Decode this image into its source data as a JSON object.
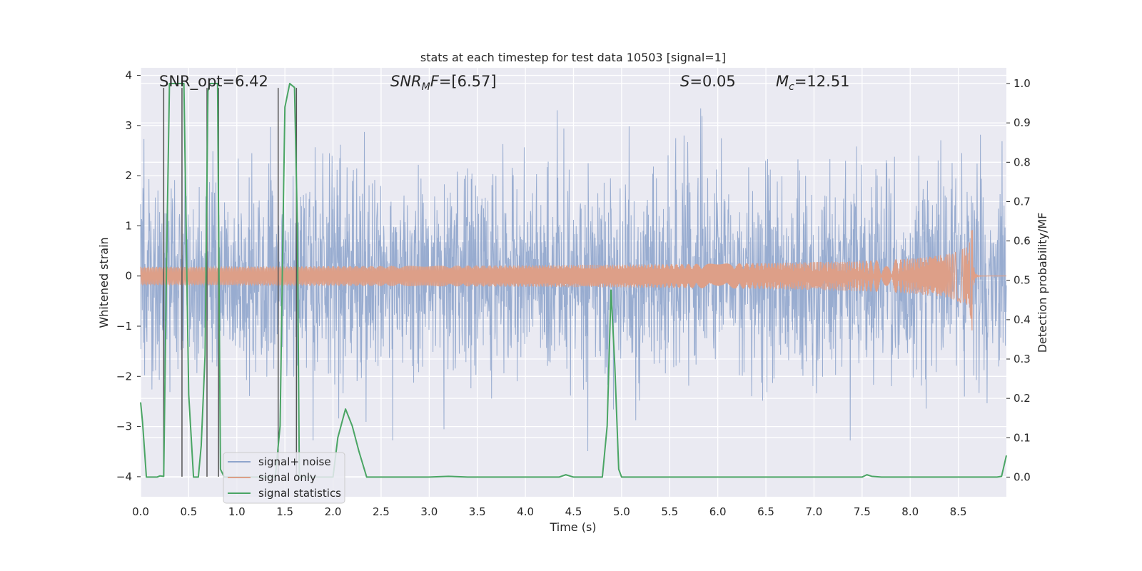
{
  "chart_data": {
    "type": "line",
    "title": "stats at each timestep for test data 10503 [signal=1]",
    "xlabel": "Time (s)",
    "ylabel_left": "Whitened strain",
    "ylabel_right": "Detection probability/MF",
    "xlim": [
      0.0,
      9.0
    ],
    "ylim_left": [
      -4.4,
      4.15
    ],
    "ylim_right": [
      -0.05,
      1.04
    ],
    "x_ticks": [
      "0.0",
      "0.5",
      "1.0",
      "1.5",
      "2.0",
      "2.5",
      "3.0",
      "3.5",
      "4.0",
      "4.5",
      "5.0",
      "5.5",
      "6.0",
      "6.5",
      "7.0",
      "7.5",
      "8.0",
      "8.5"
    ],
    "y_ticks_left": [
      "4",
      "3",
      "2",
      "1",
      "0",
      "−1",
      "−2",
      "−3",
      "−4"
    ],
    "y_ticks_right": [
      "1.0",
      "0.9",
      "0.8",
      "0.7",
      "0.6",
      "0.5",
      "0.4",
      "0.3",
      "0.2",
      "0.1",
      "0.0"
    ],
    "grid": true,
    "legend_position": "lower-left",
    "annotations": {
      "snr_opt": "SNR_opt=6.42",
      "snr_mf": "=[6.57]",
      "s": "=0.05",
      "mc": "=12.51"
    },
    "series": [
      {
        "name": "signal+ noise",
        "color": "#8fa5cc",
        "kind": "noise-strain",
        "noise_std": 1.0,
        "axis": "left"
      },
      {
        "name": "signal only",
        "color": "#dd9f88",
        "kind": "chirp",
        "merger_time": 8.65,
        "peak_amplitude": 1.35,
        "axis": "left"
      },
      {
        "name": "signal statistics",
        "color": "#4aa564",
        "axis": "right",
        "x": [
          0.0,
          0.02,
          0.06,
          0.1,
          0.17,
          0.2,
          0.24,
          0.27,
          0.3,
          0.35,
          0.4,
          0.45,
          0.5,
          0.55,
          0.6,
          0.63,
          0.67,
          0.7,
          0.72,
          0.75,
          0.78,
          0.8,
          0.83,
          0.87,
          0.9,
          1.0,
          1.2,
          1.4,
          1.45,
          1.48,
          1.5,
          1.55,
          1.6,
          1.63,
          1.65,
          1.7,
          1.8,
          1.9,
          2.0,
          2.05,
          2.13,
          2.2,
          2.27,
          2.35,
          2.45,
          2.6,
          2.8,
          3.0,
          3.2,
          3.4,
          3.6,
          3.8,
          4.0,
          4.2,
          4.35,
          4.42,
          4.5,
          4.6,
          4.7,
          4.8,
          4.85,
          4.89,
          4.93,
          4.97,
          5.0,
          5.2,
          5.5,
          6.0,
          6.5,
          7.0,
          7.5,
          7.55,
          7.6,
          7.7,
          8.0,
          8.5,
          8.8,
          8.9,
          8.95,
          9.0
        ],
        "y": [
          0.19,
          0.14,
          0.0,
          0.0,
          0.0,
          0.003,
          0.002,
          0.55,
          1.0,
          1.0,
          1.0,
          1.0,
          0.21,
          0.0,
          0.0,
          0.08,
          0.31,
          0.98,
          1.0,
          1.0,
          1.0,
          1.0,
          0.02,
          0.0,
          0.0,
          0.0,
          0.0,
          0.0,
          0.13,
          0.63,
          0.94,
          1.0,
          0.99,
          0.63,
          0.0,
          0.0,
          0.0,
          0.0,
          0.0,
          0.1,
          0.173,
          0.13,
          0.065,
          0.0,
          0.0,
          0.0,
          0.0,
          0.0,
          0.002,
          0.0,
          0.0,
          0.0,
          0.0,
          0.0,
          0.0,
          0.006,
          0.0,
          0.0,
          0.0,
          0.0,
          0.13,
          0.475,
          0.28,
          0.02,
          0.0,
          0.0,
          0.0,
          0.0,
          0.0,
          0.0,
          0.0,
          0.006,
          0.002,
          0.0,
          0.0,
          0.0,
          0.0,
          0.0,
          0.002,
          0.055
        ]
      }
    ],
    "vertical_lines": {
      "color": "#555555",
      "segments": [
        {
          "x": 0.24,
          "y0": -4.0,
          "y1": 3.75
        },
        {
          "x": 0.43,
          "y0": -4.0,
          "y1": 3.75
        },
        {
          "x": 0.69,
          "y0": -4.0,
          "y1": 3.75
        },
        {
          "x": 0.81,
          "y0": -4.0,
          "y1": 3.75
        },
        {
          "x": 1.43,
          "y0": -4.0,
          "y1": 3.75
        },
        {
          "x": 1.62,
          "y0": -4.0,
          "y1": 3.75
        }
      ]
    }
  }
}
